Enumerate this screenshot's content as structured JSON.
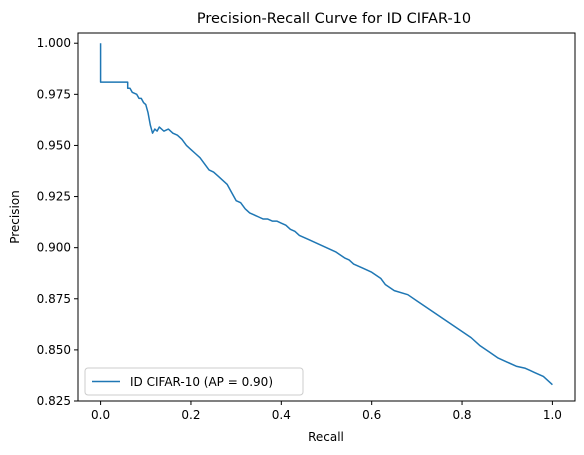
{
  "chart_data": {
    "type": "line",
    "title": "Precision-Recall Curve for ID CIFAR-10",
    "xlabel": "Recall",
    "ylabel": "Precision",
    "xlim": [
      -0.05,
      1.05
    ],
    "ylim": [
      0.825,
      1.005
    ],
    "xticks": [
      0.0,
      0.2,
      0.4,
      0.6,
      0.8,
      1.0
    ],
    "xtick_labels": [
      "0.0",
      "0.2",
      "0.4",
      "0.6",
      "0.8",
      "1.0"
    ],
    "yticks": [
      0.825,
      0.85,
      0.875,
      0.9,
      0.925,
      0.95,
      0.975,
      1.0
    ],
    "ytick_labels": [
      "0.825",
      "0.850",
      "0.875",
      "0.900",
      "0.925",
      "0.950",
      "0.975",
      "1.000"
    ],
    "grid": false,
    "legend": {
      "placement": "lower-left"
    },
    "series": [
      {
        "name": "ID CIFAR-10 (AP = 0.90)",
        "color": "#1f77b4",
        "x": [
          0.0,
          0.0,
          0.001,
          0.06,
          0.06,
          0.065,
          0.07,
          0.08,
          0.085,
          0.09,
          0.095,
          0.1,
          0.105,
          0.11,
          0.115,
          0.12,
          0.125,
          0.13,
          0.14,
          0.15,
          0.16,
          0.17,
          0.18,
          0.19,
          0.2,
          0.21,
          0.22,
          0.23,
          0.24,
          0.25,
          0.26,
          0.27,
          0.28,
          0.29,
          0.3,
          0.31,
          0.32,
          0.33,
          0.34,
          0.35,
          0.36,
          0.37,
          0.38,
          0.39,
          0.4,
          0.41,
          0.42,
          0.43,
          0.44,
          0.45,
          0.46,
          0.48,
          0.5,
          0.52,
          0.54,
          0.55,
          0.56,
          0.58,
          0.6,
          0.62,
          0.63,
          0.65,
          0.68,
          0.7,
          0.72,
          0.74,
          0.76,
          0.78,
          0.8,
          0.82,
          0.84,
          0.86,
          0.88,
          0.9,
          0.92,
          0.94,
          0.95,
          0.96,
          0.97,
          0.98,
          0.99,
          1.0
        ],
        "y": [
          1.0,
          0.981,
          0.981,
          0.981,
          0.978,
          0.978,
          0.976,
          0.975,
          0.973,
          0.973,
          0.971,
          0.97,
          0.966,
          0.96,
          0.956,
          0.958,
          0.957,
          0.959,
          0.957,
          0.958,
          0.956,
          0.955,
          0.953,
          0.95,
          0.948,
          0.946,
          0.944,
          0.941,
          0.938,
          0.937,
          0.935,
          0.933,
          0.931,
          0.927,
          0.923,
          0.922,
          0.919,
          0.917,
          0.916,
          0.915,
          0.914,
          0.914,
          0.913,
          0.913,
          0.912,
          0.911,
          0.909,
          0.908,
          0.906,
          0.905,
          0.904,
          0.902,
          0.9,
          0.898,
          0.895,
          0.894,
          0.892,
          0.89,
          0.888,
          0.885,
          0.882,
          0.879,
          0.877,
          0.874,
          0.871,
          0.868,
          0.865,
          0.862,
          0.859,
          0.856,
          0.852,
          0.849,
          0.846,
          0.844,
          0.842,
          0.841,
          0.84,
          0.839,
          0.838,
          0.837,
          0.835,
          0.833
        ]
      }
    ]
  }
}
